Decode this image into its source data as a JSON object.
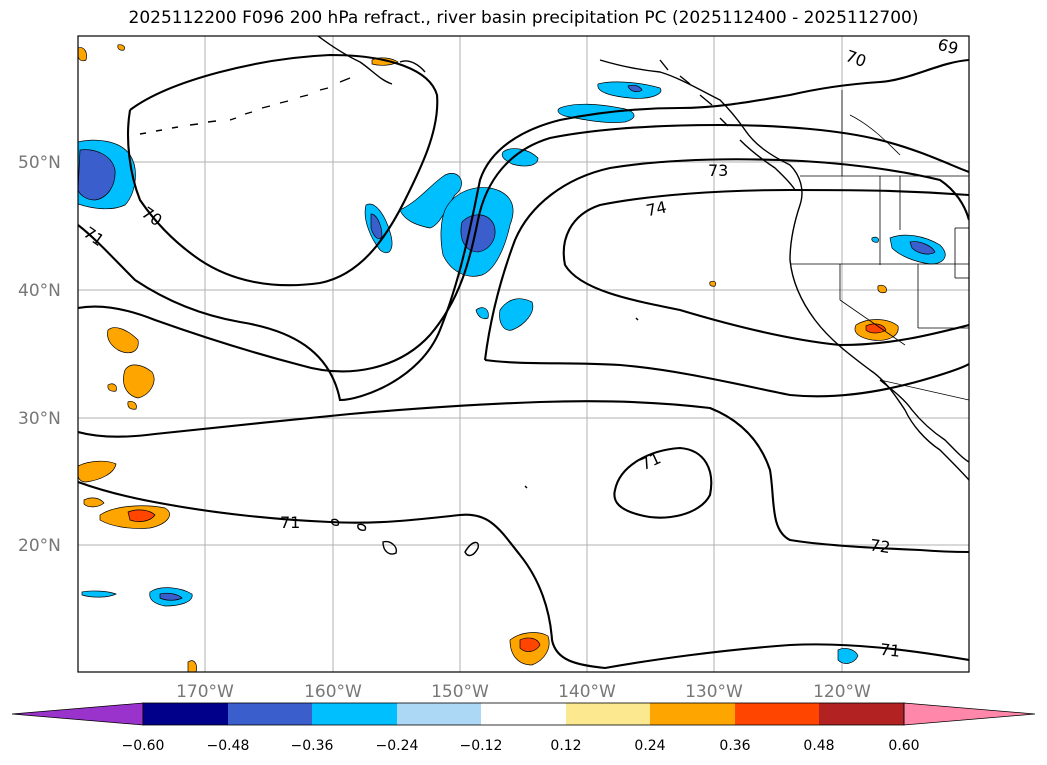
{
  "title": "2025112200 F096 200 hPa refract., river basin precipitation PC (2025112400 - 2025112700)",
  "lat_labels": [
    "50°N",
    "40°N",
    "30°N",
    "20°N"
  ],
  "lon_labels": [
    "170°W",
    "160°W",
    "150°W",
    "140°W",
    "130°W",
    "120°W"
  ],
  "contour_labels": [
    "70",
    "69",
    "71",
    "70",
    "73",
    "74",
    "71",
    "71",
    "72",
    "71"
  ],
  "colorbar": {
    "ticks": [
      "−0.60",
      "−0.48",
      "−0.36",
      "−0.24",
      "−0.12",
      "0.12",
      "0.24",
      "0.36",
      "0.48",
      "0.60"
    ],
    "colors": [
      "#9933cc",
      "#00008b",
      "#3a5fcd",
      "#00bfff",
      "#add8f5",
      "#ffffff",
      "#fce98f",
      "#ffa500",
      "#ff4500",
      "#b22222",
      "#ff88aa"
    ]
  }
}
